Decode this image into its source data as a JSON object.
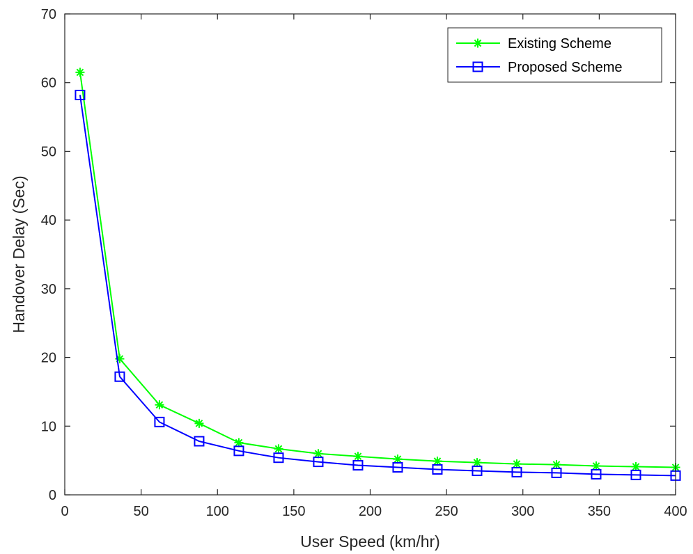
{
  "chart_data": {
    "type": "line",
    "title": "",
    "xlabel": "User Speed (km/hr)",
    "ylabel": "Handover Delay (Sec)",
    "xlim": [
      0,
      400
    ],
    "ylim": [
      0,
      70
    ],
    "xticks": [
      0,
      50,
      100,
      150,
      200,
      250,
      300,
      350,
      400
    ],
    "yticks": [
      0,
      10,
      20,
      30,
      40,
      50,
      60,
      70
    ],
    "grid": false,
    "legend_position": "top-right",
    "x": [
      10,
      36,
      62,
      88,
      114,
      140,
      166,
      192,
      218,
      244,
      270,
      296,
      322,
      348,
      374,
      400
    ],
    "series": [
      {
        "name": "Existing Scheme",
        "marker": "asterisk",
        "color": "#00ff00",
        "values": [
          61.5,
          19.8,
          13.1,
          10.4,
          7.6,
          6.7,
          6.0,
          5.6,
          5.2,
          4.9,
          4.7,
          4.5,
          4.4,
          4.2,
          4.1,
          4.0
        ]
      },
      {
        "name": "Proposed Scheme",
        "marker": "square",
        "color": "#0000ff",
        "values": [
          58.2,
          17.2,
          10.6,
          7.8,
          6.4,
          5.4,
          4.8,
          4.3,
          4.0,
          3.7,
          3.5,
          3.3,
          3.2,
          3.0,
          2.9,
          2.8
        ]
      }
    ]
  }
}
